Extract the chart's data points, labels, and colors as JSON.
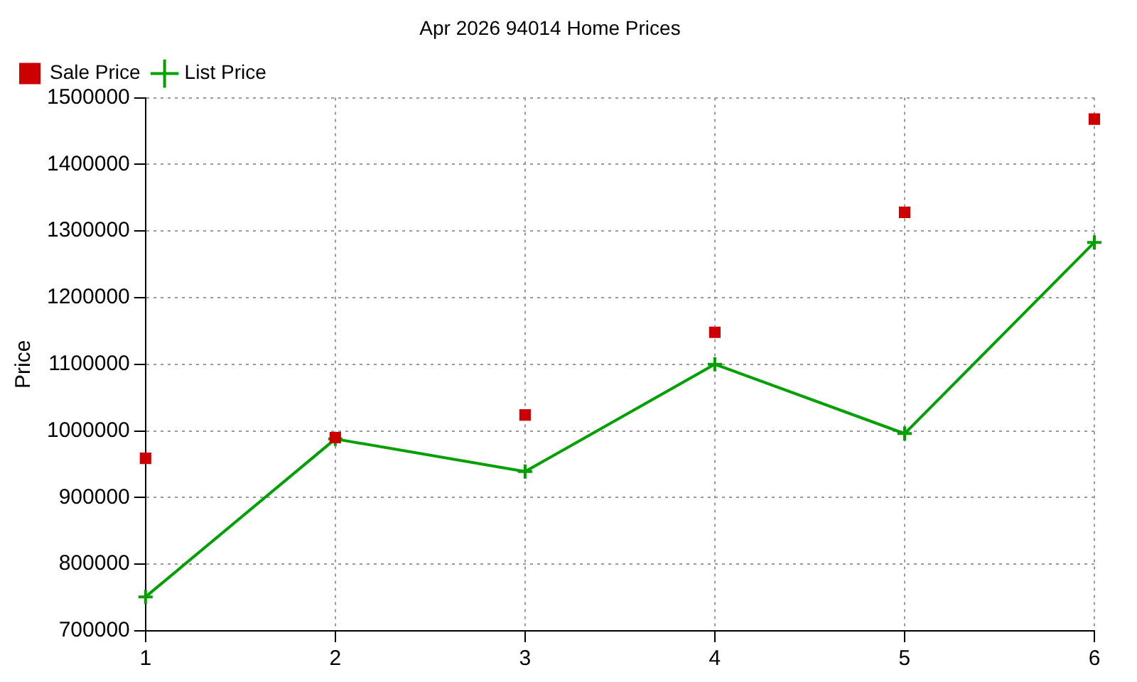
{
  "chart_data": {
    "type": "line",
    "title": "Apr 2026 94014 Home Prices",
    "ylabel": "Price",
    "x": [
      1,
      2,
      3,
      4,
      5,
      6
    ],
    "xlim": [
      1,
      6
    ],
    "xticks": [
      1,
      2,
      3,
      4,
      5,
      6
    ],
    "ylim": [
      700000,
      1500000
    ],
    "yticks": [
      700000,
      800000,
      900000,
      1000000,
      1100000,
      1200000,
      1300000,
      1400000,
      1500000
    ],
    "series": [
      {
        "name": "List Price",
        "color": "#00a000",
        "marker": "cross",
        "values": [
          751000,
          988000,
          939000,
          1100000,
          996000,
          1283000
        ]
      },
      {
        "name": "Sale Price",
        "type": "scatter",
        "color": "#cc0000",
        "marker": "square",
        "values": [
          959000,
          990000,
          1024000,
          1148000,
          1328000,
          1468000
        ]
      }
    ],
    "grid": true,
    "legend": "top left"
  }
}
